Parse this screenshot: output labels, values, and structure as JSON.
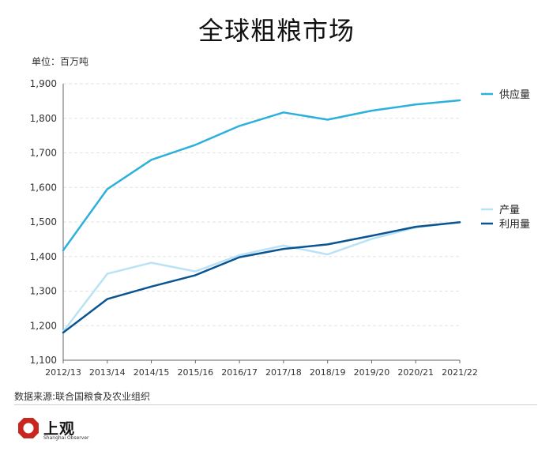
{
  "title": "全球粗粮市场",
  "unit_label": "单位：百万吨",
  "source": "数据来源:联合国粮食及农业组织",
  "logo": {
    "text": "上观",
    "subtext": "Shanghai Observer",
    "mark_color": "#c8271f"
  },
  "chart_data": {
    "type": "line",
    "title": "全球粗粮市场",
    "xlabel": "",
    "ylabel": "",
    "categories": [
      "2012/13",
      "2013/14",
      "2014/15",
      "2015/16",
      "2016/17",
      "2017/18",
      "2018/19",
      "2019/20",
      "2020/21",
      "2021/22"
    ],
    "ylim": [
      1100,
      1900
    ],
    "yticks": [
      1100,
      1200,
      1300,
      1400,
      1500,
      1600,
      1700,
      1800,
      1900
    ],
    "ytick_labels": [
      "1,100",
      "1,200",
      "1,300",
      "1,400",
      "1,500",
      "1,600",
      "1,700",
      "1,800",
      "1,900"
    ],
    "grid": true,
    "legend_position": "right",
    "series": [
      {
        "name": "供应量",
        "color": "#2cb0dc",
        "width": 2.5,
        "values": [
          1418,
          1595,
          1680,
          1723,
          1778,
          1817,
          1796,
          1822,
          1840,
          1852
        ]
      },
      {
        "name": "产量",
        "color": "#b9e2f5",
        "width": 2.5,
        "values": [
          1183,
          1350,
          1382,
          1357,
          1404,
          1432,
          1406,
          1451,
          1484,
          1500
        ]
      },
      {
        "name": "利用量",
        "color": "#0a5491",
        "width": 2.5,
        "values": [
          1180,
          1277,
          1313,
          1346,
          1398,
          1422,
          1435,
          1460,
          1486,
          1499
        ]
      }
    ]
  }
}
